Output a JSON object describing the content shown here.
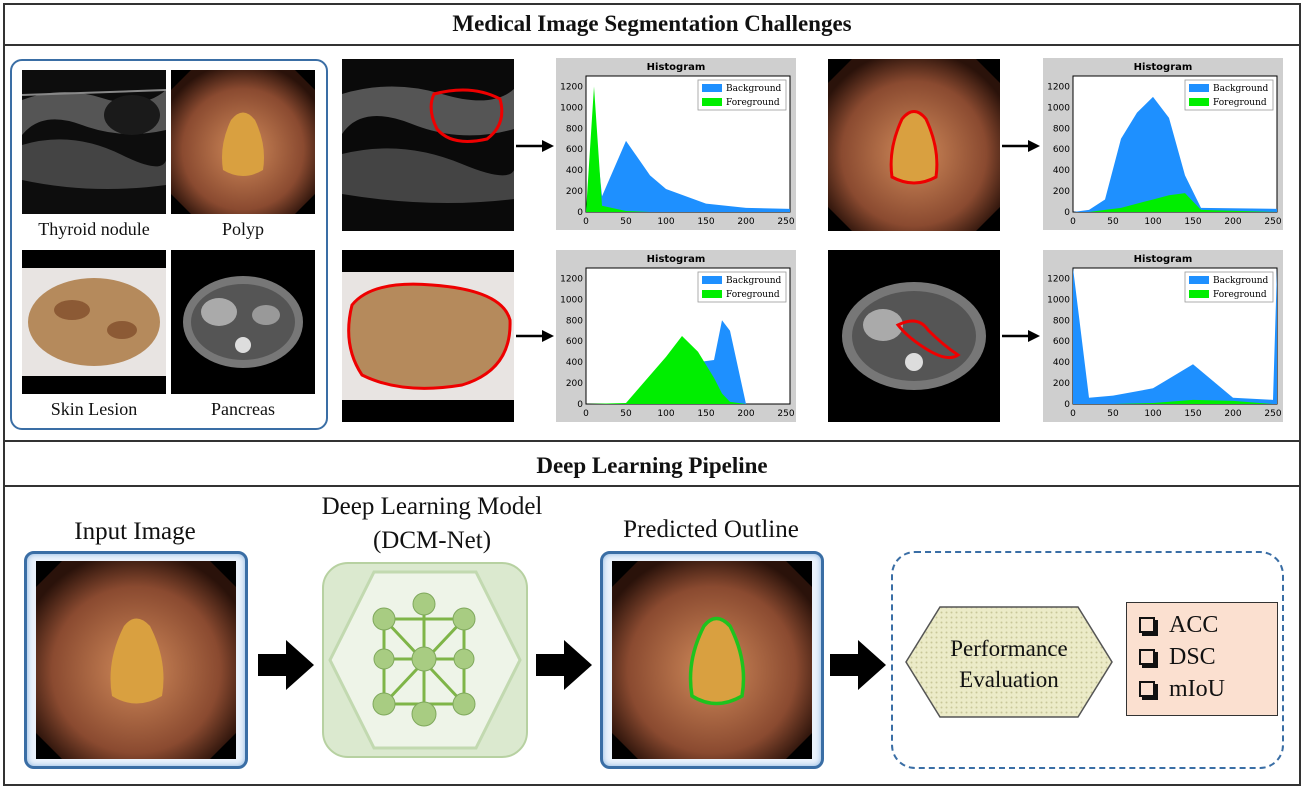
{
  "top_title": "Medical Image Segmentation Challenges",
  "bottom_title": "Deep Learning Pipeline",
  "sample_labels": [
    "Thyroid nodule",
    "Polyp",
    "Skin Lesion",
    "Pancreas"
  ],
  "histogram": {
    "title": "Histogram",
    "legend": [
      "Background",
      "Foreground"
    ],
    "x_ticks": [
      "0",
      "50",
      "100",
      "150",
      "200",
      "250"
    ],
    "y_ticks": [
      "0",
      "200",
      "400",
      "600",
      "800",
      "1000",
      "1200"
    ],
    "colors": {
      "background": "#1e90ff",
      "foreground": "#00ee00"
    }
  },
  "pipeline": {
    "input_label": "Input Image",
    "model_label_line1": "Deep Learning Model",
    "model_label_line2": "(DCM-Net)",
    "output_label": "Predicted Outline",
    "eval_line1": "Performance",
    "eval_line2": "Evaluation",
    "metrics": [
      "ACC",
      "DSC",
      "mIoU"
    ]
  },
  "chart_data": [
    {
      "type": "area",
      "title": "Histogram",
      "x": [
        0,
        10,
        20,
        50,
        80,
        100,
        150,
        200,
        255
      ],
      "series": [
        {
          "name": "Background",
          "values": [
            0,
            900,
            150,
            680,
            350,
            220,
            80,
            40,
            30
          ]
        },
        {
          "name": "Foreground",
          "values": [
            0,
            1200,
            60,
            10,
            0,
            0,
            0,
            0,
            0
          ]
        }
      ],
      "ylim": [
        0,
        1300
      ],
      "xlim": [
        0,
        255
      ]
    },
    {
      "type": "area",
      "title": "Histogram",
      "x": [
        0,
        20,
        40,
        60,
        80,
        100,
        120,
        140,
        160,
        255
      ],
      "series": [
        {
          "name": "Background",
          "values": [
            0,
            20,
            120,
            700,
            950,
            1100,
            900,
            350,
            40,
            30
          ]
        },
        {
          "name": "Foreground",
          "values": [
            0,
            0,
            20,
            40,
            80,
            120,
            160,
            180,
            20,
            0
          ]
        }
      ],
      "ylim": [
        0,
        1300
      ],
      "xlim": [
        0,
        255
      ]
    },
    {
      "type": "area",
      "title": "Histogram",
      "x": [
        0,
        50,
        100,
        120,
        140,
        160,
        170,
        180,
        200,
        255
      ],
      "series": [
        {
          "name": "Background",
          "values": [
            0,
            0,
            300,
            600,
            400,
            420,
            800,
            700,
            0,
            0
          ]
        },
        {
          "name": "Foreground",
          "values": [
            0,
            10,
            450,
            650,
            500,
            250,
            100,
            20,
            0,
            0
          ]
        }
      ],
      "ylim": [
        0,
        1300
      ],
      "xlim": [
        0,
        255
      ]
    },
    {
      "type": "area",
      "title": "Histogram",
      "x": [
        0,
        20,
        50,
        100,
        150,
        200,
        250,
        255
      ],
      "series": [
        {
          "name": "Background",
          "values": [
            1300,
            60,
            80,
            150,
            380,
            60,
            40,
            1300
          ]
        },
        {
          "name": "Foreground",
          "values": [
            0,
            0,
            0,
            10,
            40,
            30,
            0,
            0
          ]
        }
      ],
      "ylim": [
        0,
        1300
      ],
      "xlim": [
        0,
        255
      ]
    }
  ]
}
